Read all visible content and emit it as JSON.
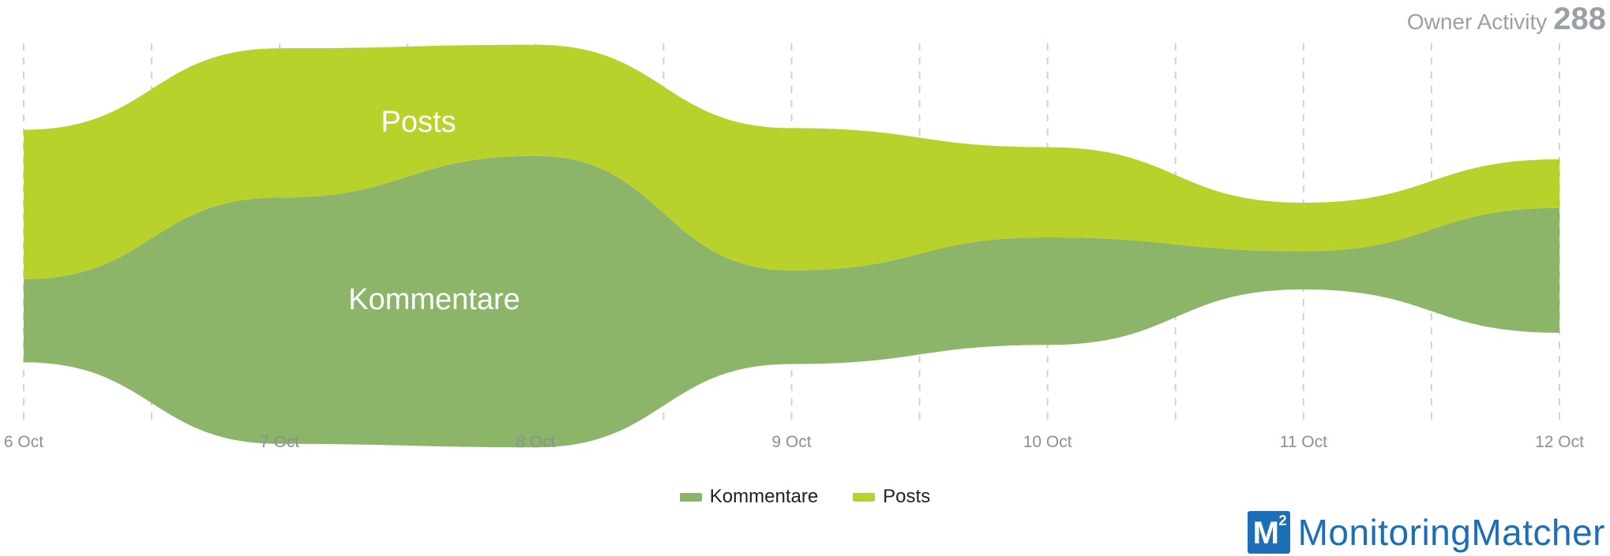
{
  "header": {
    "label": "Owner Activity",
    "count": "288"
  },
  "chart_data": {
    "type": "area",
    "subtype": "streamgraph",
    "categories": [
      "6 Oct",
      "7 Oct",
      "8 Oct",
      "9 Oct",
      "10 Oct",
      "11 Oct",
      "12 Oct"
    ],
    "series": [
      {
        "name": "Kommentare",
        "values": [
          24,
          71,
          84,
          27,
          31,
          11,
          36
        ],
        "color": "#8db56a"
      },
      {
        "name": "Posts",
        "values": [
          43,
          43,
          32,
          41,
          26,
          14,
          14
        ],
        "color": "#b8d22b"
      }
    ],
    "annotations": [
      "Posts",
      "Kommentare"
    ],
    "grid": "vertical-dashed",
    "legend_position": "bottom-center"
  },
  "legend": [
    {
      "label": "Kommentare",
      "color": "#8db56a"
    },
    {
      "label": "Posts",
      "color": "#b8d22b"
    }
  ],
  "brand": {
    "logo_letter": "M",
    "logo_sup": "2",
    "name": "MonitoringMatcher"
  }
}
